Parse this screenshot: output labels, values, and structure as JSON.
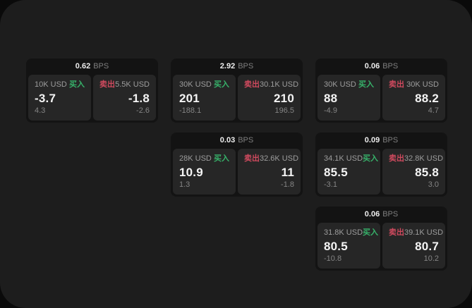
{
  "units": {
    "bps": "BPS"
  },
  "labels": {
    "buy": "买入",
    "sell": "卖出"
  },
  "colors": {
    "buy_green": "#37b26a",
    "sell_red": "#cf4a5e",
    "window_bg": "#1d1d1d",
    "card_bg": "#131313",
    "panel_bg": "#262626"
  },
  "cards": [
    {
      "spread_bps": "0.62",
      "buy": {
        "size": "10K USD",
        "price": "-3.7",
        "delta": "4.3"
      },
      "sell": {
        "size": "5.5K USD",
        "price": "-1.8",
        "delta": "-2.6"
      }
    },
    {
      "spread_bps": "2.92",
      "buy": {
        "size": "30K USD",
        "price": "201",
        "delta": "-188.1"
      },
      "sell": {
        "size": "30.1K USD",
        "price": "210",
        "delta": "196.5"
      }
    },
    {
      "spread_bps": "0.06",
      "buy": {
        "size": "30K USD",
        "price": "88",
        "delta": "-4.9"
      },
      "sell": {
        "size": "30K USD",
        "price": "88.2",
        "delta": "4.7"
      }
    },
    {
      "spread_bps": "0.03",
      "buy": {
        "size": "28K USD",
        "price": "10.9",
        "delta": "1.3"
      },
      "sell": {
        "size": "32.6K USD",
        "price": "11",
        "delta": "-1.8"
      }
    },
    {
      "spread_bps": "0.09",
      "buy": {
        "size": "34.1K USD",
        "price": "85.5",
        "delta": "-3.1"
      },
      "sell": {
        "size": "32.8K USD",
        "price": "85.8",
        "delta": "3.0"
      }
    },
    {
      "spread_bps": "0.06",
      "buy": {
        "size": "31.8K USD",
        "price": "80.5",
        "delta": "-10.8"
      },
      "sell": {
        "size": "39.1K USD",
        "price": "80.7",
        "delta": "10.2"
      }
    }
  ]
}
